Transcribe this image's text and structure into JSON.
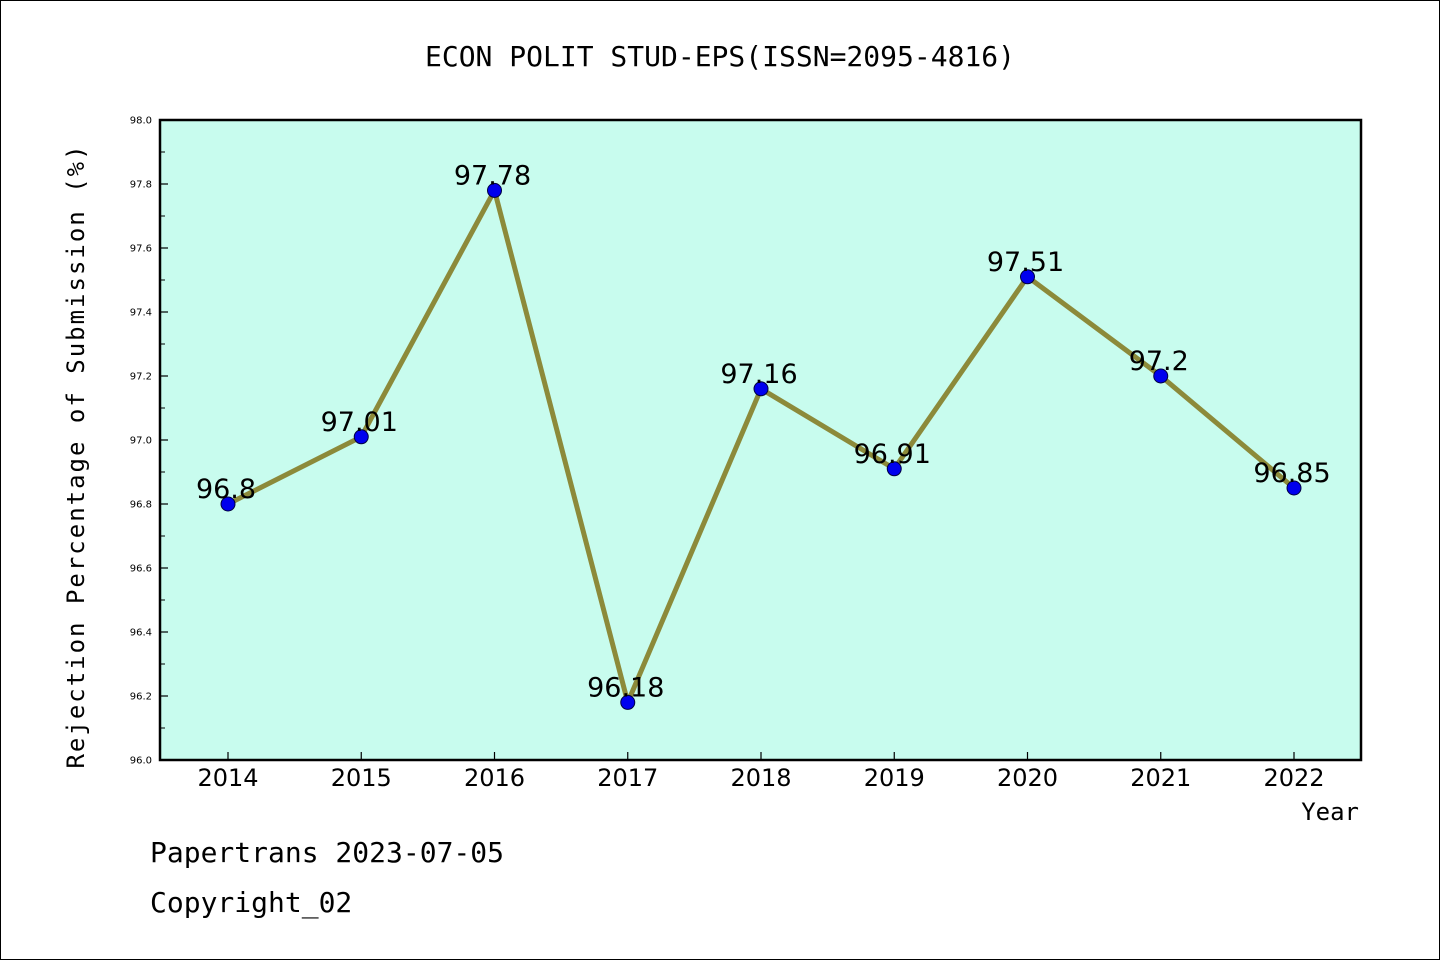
{
  "chart_data": {
    "type": "line",
    "title": "ECON POLIT STUD-EPS(ISSN=2095-4816)",
    "xlabel": "Year",
    "ylabel": "Rejection Percentage of Submission (%)",
    "categories": [
      "2014",
      "2015",
      "2016",
      "2017",
      "2018",
      "2019",
      "2020",
      "2021",
      "2022"
    ],
    "values": [
      96.8,
      97.01,
      97.78,
      96.18,
      97.16,
      96.91,
      97.51,
      97.2,
      96.85
    ],
    "data_labels": [
      "96.8",
      "97.01",
      "97.78",
      "96.18",
      "97.16",
      "96.91",
      "97.51",
      "97.2",
      "96.85"
    ],
    "ylim": [
      96.0,
      98.0
    ],
    "yticks": [
      "96.0",
      "96.2",
      "96.4",
      "96.6",
      "96.8",
      "97.0",
      "97.2",
      "97.4",
      "97.6",
      "97.8",
      "98.0"
    ],
    "grid": false,
    "colors": {
      "plot_background": "#c8fcee",
      "line": "#8c8a3a",
      "marker": "#0000ee"
    }
  },
  "footer": {
    "line1": "Papertrans 2023-07-05",
    "line2": "Copyright_02"
  }
}
